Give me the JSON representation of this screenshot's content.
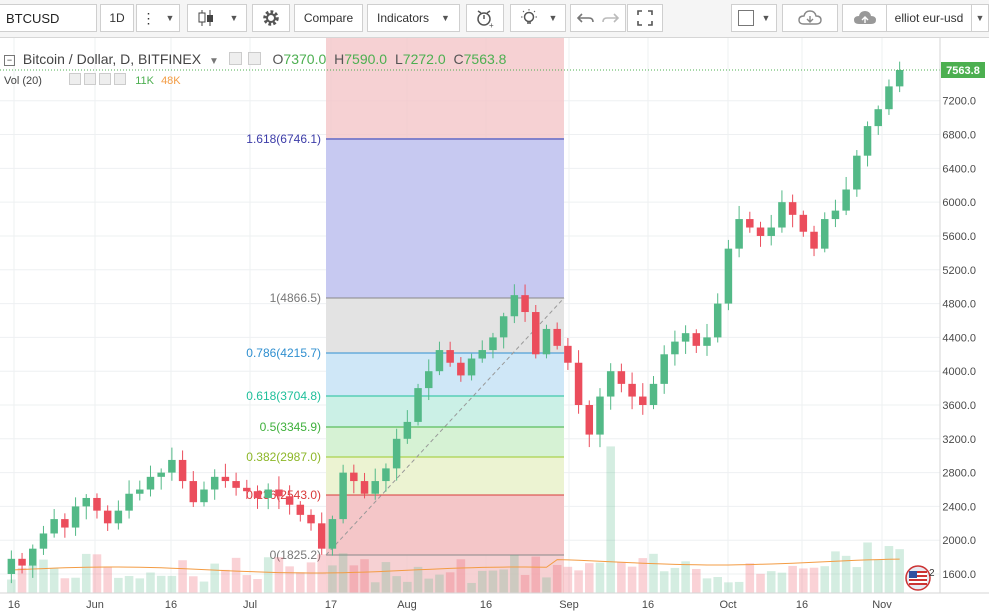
{
  "toolbar": {
    "symbol": "BTCUSD",
    "interval": "1D",
    "compare_label": "Compare",
    "indicators_label": "Indicators",
    "layout_name": "elliot eur-usd"
  },
  "legend": {
    "title": "Bitcoin / Dollar, D, BITFINEX",
    "o_label": "O",
    "o_value": "7370.0",
    "h_label": "H",
    "h_value": "7590.0",
    "l_label": "L",
    "l_value": "7272.0",
    "c_label": "C",
    "c_value": "7563.8",
    "vol_label": "Vol (20)",
    "vol_value": "11K",
    "vol_ma_value": "48K"
  },
  "colors": {
    "up": "#53b987",
    "down": "#eb4d5c",
    "axis_text": "#4a4a4a",
    "price_badge": "#4caf50",
    "volume_ma": "#f39c44",
    "grid": "#eef0f2"
  },
  "chart_data": {
    "type": "candlestick",
    "symbol": "BTCUSD",
    "exchange": "BITFINEX",
    "timeframe": "D",
    "ylim": [
      1450,
      7750
    ],
    "y_ticks": [
      1600,
      2000,
      2400,
      2800,
      3200,
      3600,
      4000,
      4400,
      4800,
      5200,
      5600,
      6000,
      6400,
      6800,
      7200
    ],
    "x_tick_labels": [
      "16",
      "Jun",
      "16",
      "Jul",
      "17",
      "Aug",
      "16",
      "Sep",
      "16",
      "Oct",
      "16",
      "Nov"
    ],
    "last_price": "7563.8",
    "candles_approx": [
      [
        1600,
        1780
      ],
      [
        1780,
        1700
      ],
      [
        1700,
        1900
      ],
      [
        1900,
        2080
      ],
      [
        2080,
        2250
      ],
      [
        2250,
        2150
      ],
      [
        2150,
        2400
      ],
      [
        2400,
        2500
      ],
      [
        2500,
        2350
      ],
      [
        2350,
        2200
      ],
      [
        2200,
        2350
      ],
      [
        2350,
        2550
      ],
      [
        2550,
        2600
      ],
      [
        2600,
        2750
      ],
      [
        2750,
        2800
      ],
      [
        2800,
        2950
      ],
      [
        2950,
        2700
      ],
      [
        2700,
        2450
      ],
      [
        2450,
        2600
      ],
      [
        2600,
        2750
      ],
      [
        2750,
        2700
      ],
      [
        2700,
        2620
      ],
      [
        2620,
        2580
      ],
      [
        2580,
        2500
      ],
      [
        2500,
        2600
      ],
      [
        2600,
        2520
      ],
      [
        2520,
        2420
      ],
      [
        2420,
        2300
      ],
      [
        2300,
        2200
      ],
      [
        2200,
        1900
      ],
      [
        1900,
        2250
      ],
      [
        2250,
        2800
      ],
      [
        2800,
        2700
      ],
      [
        2700,
        2550
      ],
      [
        2550,
        2700
      ],
      [
        2700,
        2850
      ],
      [
        2850,
        3200
      ],
      [
        3200,
        3400
      ],
      [
        3400,
        3800
      ],
      [
        3800,
        4000
      ],
      [
        4000,
        4250
      ],
      [
        4250,
        4100
      ],
      [
        4100,
        3950
      ],
      [
        3950,
        4150
      ],
      [
        4150,
        4250
      ],
      [
        4250,
        4400
      ],
      [
        4400,
        4650
      ],
      [
        4650,
        4900
      ],
      [
        4900,
        4700
      ],
      [
        4700,
        4200
      ],
      [
        4200,
        4500
      ],
      [
        4500,
        4300
      ],
      [
        4300,
        4100
      ],
      [
        4100,
        3600
      ],
      [
        3600,
        3250
      ],
      [
        3250,
        3700
      ],
      [
        3700,
        4000
      ],
      [
        4000,
        3850
      ],
      [
        3850,
        3700
      ],
      [
        3700,
        3600
      ],
      [
        3600,
        3850
      ],
      [
        3850,
        4200
      ],
      [
        4200,
        4350
      ],
      [
        4350,
        4450
      ],
      [
        4450,
        4300
      ],
      [
        4300,
        4400
      ],
      [
        4400,
        4800
      ],
      [
        4800,
        5450
      ],
      [
        5450,
        5800
      ],
      [
        5800,
        5700
      ],
      [
        5700,
        5600
      ],
      [
        5600,
        5700
      ],
      [
        5700,
        6000
      ],
      [
        6000,
        5850
      ],
      [
        5850,
        5650
      ],
      [
        5650,
        5450
      ],
      [
        5450,
        5800
      ],
      [
        5800,
        5900
      ],
      [
        5900,
        6150
      ],
      [
        6150,
        6550
      ],
      [
        6550,
        6900
      ],
      [
        6900,
        7100
      ],
      [
        7100,
        7370
      ],
      [
        7370,
        7563.8
      ]
    ],
    "fibonacci_retracement": {
      "levels": [
        {
          "ratio": "0",
          "price": "1825.2",
          "label": "0(1825.2)"
        },
        {
          "ratio": "0.236",
          "price": "2543.0",
          "label": "0.236(2543.0)"
        },
        {
          "ratio": "0.382",
          "price": "2987.0",
          "label": "0.382(2987.0)"
        },
        {
          "ratio": "0.5",
          "price": "3345.9",
          "label": "0.5(3345.9)"
        },
        {
          "ratio": "0.618",
          "price": "3704.8",
          "label": "0.618(3704.8)"
        },
        {
          "ratio": "0.786",
          "price": "4215.7",
          "label": "0.786(4215.7)"
        },
        {
          "ratio": "1",
          "price": "4866.5",
          "label": "1(4866.5)"
        },
        {
          "ratio": "1.618",
          "price": "6746.1",
          "label": "1.618(6746.1)"
        }
      ]
    }
  }
}
